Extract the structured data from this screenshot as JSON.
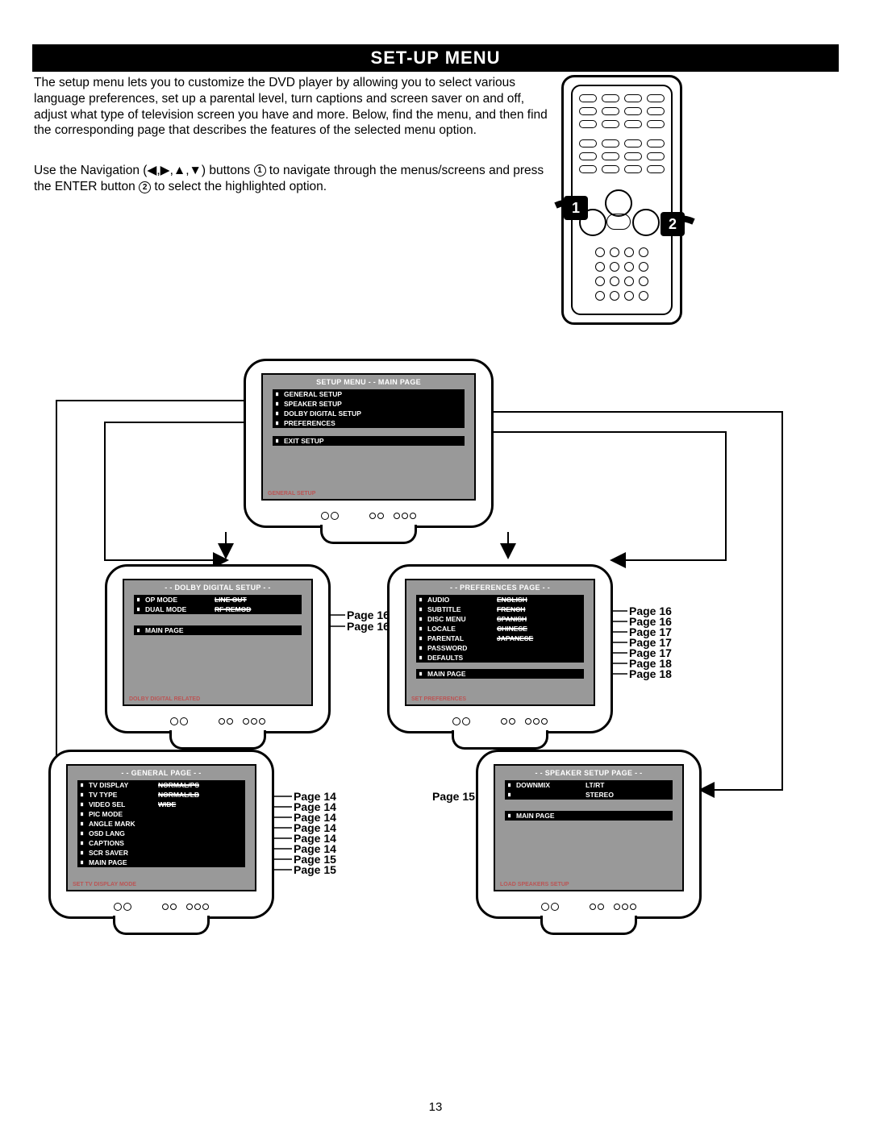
{
  "title": "SET-UP MENU",
  "intro": "The setup menu lets you to customize the DVD player by allowing you to select various language preferences, set up a parental level, turn captions and screen saver on and off, adjust what type of television screen you have and more. Below, find the menu, and then find the corresponding page that describes the features of the selected menu option.",
  "nav1": "Use the Navigation (◀,▶,▲,▼) buttons ",
  "nav_b1": "1",
  "nav2": " to navigate through the menus/screens and press the ENTER button ",
  "nav_b2": "2",
  "nav3": " to select the highlighted option.",
  "badge1": "1",
  "badge2": "2",
  "main_tv": {
    "title": "SETUP MENU  - - MAIN PAGE",
    "items": [
      "GENERAL  SETUP",
      "SPEAKER SETUP",
      "DOLBY DIGITAL SETUP",
      "PREFERENCES"
    ],
    "exit": "EXIT SETUP",
    "footer": "GENERAL SETUP"
  },
  "dolby_tv": {
    "title": "- -  DOLBY DIGITAL SETUP  - -",
    "rows": [
      {
        "lbl": "OP MODE",
        "val": "LINE OUT"
      },
      {
        "lbl": "DUAL MODE",
        "val": "RF REMOD"
      }
    ],
    "main": "MAIN PAGE",
    "footer": "DOLBY DIGITAL RELATED",
    "pages": [
      "Page 16",
      "Page 16"
    ]
  },
  "pref_tv": {
    "title": "- - PREFERENCES PAGE - -",
    "rows": [
      {
        "lbl": "AUDIO",
        "val": "ENGLISH"
      },
      {
        "lbl": "SUBTITLE",
        "val": "FRENCH"
      },
      {
        "lbl": "DISC MENU",
        "val": "SPANISH"
      },
      {
        "lbl": "LOCALE",
        "val": "CHINESE"
      },
      {
        "lbl": "PARENTAL",
        "val": "JAPANESE"
      },
      {
        "lbl": "PASSWORD",
        "val": ""
      },
      {
        "lbl": "DEFAULTS",
        "val": ""
      }
    ],
    "main": "MAIN PAGE",
    "footer": "SET PREFERENCES",
    "pages": [
      "Page 16",
      "Page 16",
      "Page 17",
      "Page 17",
      "Page 17",
      "Page 18",
      "Page 18"
    ]
  },
  "general_tv": {
    "title": "- - GENERAL PAGE - -",
    "rows": [
      {
        "lbl": "TV DISPLAY",
        "val": "NORMAL/PS"
      },
      {
        "lbl": "TV TYPE",
        "val": "NORMAL/LB"
      },
      {
        "lbl": "VIDEO SEL",
        "val": "WIDE"
      },
      {
        "lbl": "PIC MODE",
        "val": ""
      },
      {
        "lbl": "ANGLE MARK",
        "val": ""
      },
      {
        "lbl": "OSD LANG",
        "val": ""
      },
      {
        "lbl": "CAPTIONS",
        "val": ""
      },
      {
        "lbl": "SCR SAVER",
        "val": ""
      }
    ],
    "main": "MAIN PAGE",
    "footer": "SET TV DISPLAY MODE",
    "pages": [
      "Page 14",
      "Page 14",
      "Page 14",
      "Page 14",
      "Page 14",
      "Page 14",
      "Page 15",
      "Page 15"
    ]
  },
  "speaker_tv": {
    "title": "- - SPEAKER SETUP PAGE - -",
    "rows": [
      {
        "lbl": "DOWNMIX",
        "val": "LT/RT"
      },
      {
        "lbl": "",
        "val": "STEREO"
      }
    ],
    "main": "MAIN PAGE",
    "footer": "LOAD SPEAKERS SETUP",
    "page": "Page 15"
  },
  "page_number": "13"
}
